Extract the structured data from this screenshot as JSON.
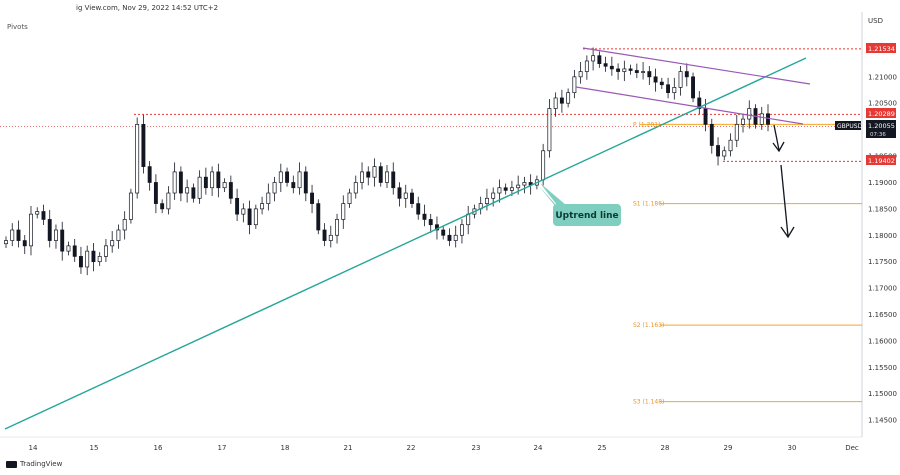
{
  "header": {
    "source_line": "ig View.com, Nov 29, 2022 14:52 UTC+2",
    "indicator": "Pivots"
  },
  "brand": {
    "text": "TradingView"
  },
  "price_tags": {
    "currency": "USD",
    "high": "1.21534",
    "resistance": "1.20289",
    "symbol": "GBPUSD",
    "current": "1.20055",
    "countdown": "07:36",
    "support": "1.19402"
  },
  "colors": {
    "candle": "#131722",
    "uptrend": "#26a69a",
    "channel": "#9b59b6",
    "pivot": "#f5a623",
    "dotted_red": "#e53935",
    "badge": "#7ecfbf",
    "red_tag": "#e53935"
  },
  "annotation": {
    "label": "Uptrend line"
  },
  "chart_data": {
    "type": "candlestick",
    "symbol": "GBPUSD",
    "timeframe_dates": [
      "14",
      "15",
      "16",
      "17",
      "18",
      "21",
      "22",
      "23",
      "24",
      "25",
      "28",
      "29",
      "30",
      "Dec"
    ],
    "y_ticks": [
      "1.21000",
      "1.20500",
      "1.19500",
      "1.19000",
      "1.18500",
      "1.18000",
      "1.17500",
      "1.17000",
      "1.16500",
      "1.16000",
      "1.15500",
      "1.15000",
      "1.14500"
    ],
    "ylim": [
      1.142,
      1.22
    ],
    "closes": [
      1.179,
      1.181,
      1.179,
      1.178,
      1.184,
      1.1845,
      1.183,
      1.179,
      1.181,
      1.177,
      1.178,
      1.176,
      1.174,
      1.177,
      1.175,
      1.176,
      1.178,
      1.179,
      1.181,
      1.183,
      1.188,
      1.201,
      1.193,
      1.19,
      1.186,
      1.185,
      1.188,
      1.192,
      1.188,
      1.189,
      1.187,
      1.191,
      1.189,
      1.192,
      1.189,
      1.19,
      1.187,
      1.184,
      1.185,
      1.182,
      1.185,
      1.186,
      1.188,
      1.19,
      1.192,
      1.19,
      1.189,
      1.192,
      1.188,
      1.186,
      1.181,
      1.179,
      1.18,
      1.183,
      1.186,
      1.188,
      1.19,
      1.192,
      1.191,
      1.193,
      1.19,
      1.192,
      1.189,
      1.187,
      1.188,
      1.186,
      1.184,
      1.183,
      1.182,
      1.181,
      1.18,
      1.179,
      1.18,
      1.182,
      1.184,
      1.185,
      1.186,
      1.187,
      1.188,
      1.189,
      1.1885,
      1.189,
      1.1895,
      1.19,
      1.1895,
      1.1905,
      1.196,
      1.204,
      1.206,
      1.205,
      1.207,
      1.21,
      1.211,
      1.213,
      1.214,
      1.2125,
      1.212,
      1.2115,
      1.211,
      1.2115,
      1.2112,
      1.2108,
      1.211,
      1.21,
      1.209,
      1.2085,
      1.207,
      1.208,
      1.211,
      1.21,
      1.206,
      1.204,
      1.201,
      1.197,
      1.195,
      1.196,
      1.198,
      1.201,
      1.202,
      1.204,
      1.201,
      1.203,
      1.201
    ],
    "levels": [
      {
        "label": "P (1.201)",
        "value": 1.201
      },
      {
        "label": "S1 (1.186)",
        "value": 1.186
      },
      {
        "label": "S2 (1.163)",
        "value": 1.163
      },
      {
        "label": "S3 (1.148)",
        "value": 1.1485
      }
    ],
    "horizontal_lines": [
      {
        "name": "high",
        "value": 1.2153
      },
      {
        "name": "resistance",
        "value": 1.2029
      },
      {
        "name": "support",
        "value": 1.194
      },
      {
        "name": "current",
        "value": 1.2006
      }
    ]
  }
}
